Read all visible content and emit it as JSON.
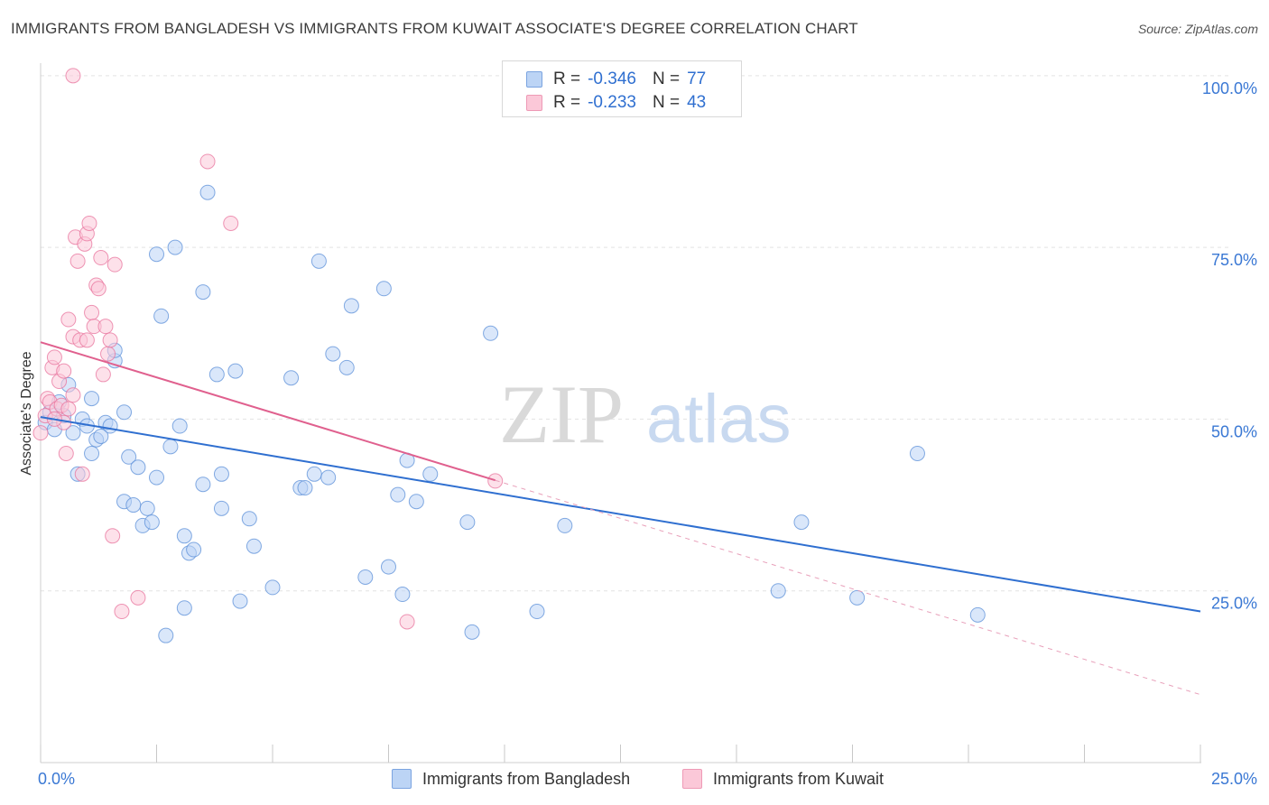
{
  "title": "IMMIGRANTS FROM BANGLADESH VS IMMIGRANTS FROM KUWAIT ASSOCIATE'S DEGREE CORRELATION CHART",
  "source": "Source: ZipAtlas.com",
  "watermark": {
    "part1": "ZIP",
    "part2": "atlas"
  },
  "legend": {
    "rows": [
      {
        "r_label": "R =",
        "r_value": "-0.346",
        "n_label": "N =",
        "n_value": "77"
      },
      {
        "r_label": "R =",
        "r_value": "-0.233",
        "n_label": "N =",
        "n_value": "43"
      }
    ]
  },
  "chart_data": {
    "type": "scatter",
    "xlabel": "",
    "ylabel": "Associate's Degree",
    "xlim": [
      0,
      25
    ],
    "ylim": [
      0,
      100
    ],
    "x_tick_labels": [
      {
        "value": 0,
        "label": "0.0%"
      },
      {
        "value": 25,
        "label": "25.0%"
      }
    ],
    "y_tick_labels": [
      {
        "value": 25,
        "label": "25.0%"
      },
      {
        "value": 50,
        "label": "50.0%"
      },
      {
        "value": 75,
        "label": "75.0%"
      },
      {
        "value": 100,
        "label": "100.0%"
      }
    ],
    "grid": true,
    "legend_position": "top-center",
    "series": [
      {
        "name": "Immigrants from Bangladesh",
        "color": "#5b8fd8",
        "fill": "#bcd4f5",
        "r": -0.346,
        "n": 77,
        "trend": {
          "x": [
            0,
            25
          ],
          "y": [
            50.3,
            22.0
          ],
          "dashed_until": null
        },
        "points": [
          [
            0.1,
            49.5
          ],
          [
            0.2,
            51.0
          ],
          [
            0.3,
            48.5
          ],
          [
            0.4,
            52.5
          ],
          [
            0.5,
            50.5
          ],
          [
            0.6,
            55.0
          ],
          [
            0.7,
            48.0
          ],
          [
            0.8,
            42.0
          ],
          [
            0.9,
            50.0
          ],
          [
            1.0,
            49.0
          ],
          [
            1.1,
            45.0
          ],
          [
            1.1,
            53.0
          ],
          [
            1.2,
            47.0
          ],
          [
            1.3,
            47.5
          ],
          [
            1.4,
            49.5
          ],
          [
            1.5,
            49.0
          ],
          [
            1.6,
            58.5
          ],
          [
            1.6,
            60.0
          ],
          [
            1.8,
            51.0
          ],
          [
            1.8,
            38.0
          ],
          [
            1.9,
            44.5
          ],
          [
            2.0,
            37.5
          ],
          [
            2.1,
            43.0
          ],
          [
            2.2,
            34.5
          ],
          [
            2.3,
            37.0
          ],
          [
            2.4,
            35.0
          ],
          [
            2.5,
            74.0
          ],
          [
            2.5,
            41.5
          ],
          [
            2.6,
            65.0
          ],
          [
            2.7,
            18.5
          ],
          [
            2.8,
            46.0
          ],
          [
            2.9,
            75.0
          ],
          [
            3.0,
            49.0
          ],
          [
            3.1,
            22.5
          ],
          [
            3.1,
            33.0
          ],
          [
            3.2,
            30.5
          ],
          [
            3.3,
            31.0
          ],
          [
            3.5,
            68.5
          ],
          [
            3.5,
            40.5
          ],
          [
            3.6,
            83.0
          ],
          [
            3.8,
            56.5
          ],
          [
            3.9,
            37.0
          ],
          [
            3.9,
            42.0
          ],
          [
            4.2,
            57.0
          ],
          [
            4.3,
            23.5
          ],
          [
            4.5,
            35.5
          ],
          [
            4.6,
            31.5
          ],
          [
            5.0,
            25.5
          ],
          [
            5.4,
            56.0
          ],
          [
            5.6,
            40.0
          ],
          [
            5.7,
            40.0
          ],
          [
            5.9,
            42.0
          ],
          [
            6.0,
            73.0
          ],
          [
            6.2,
            41.5
          ],
          [
            6.3,
            59.5
          ],
          [
            6.6,
            57.5
          ],
          [
            6.7,
            66.5
          ],
          [
            7.0,
            27.0
          ],
          [
            7.4,
            69.0
          ],
          [
            7.5,
            28.5
          ],
          [
            7.7,
            39.0
          ],
          [
            7.8,
            24.5
          ],
          [
            7.9,
            44.0
          ],
          [
            8.1,
            38.0
          ],
          [
            8.4,
            42.0
          ],
          [
            9.2,
            35.0
          ],
          [
            9.3,
            19.0
          ],
          [
            9.7,
            62.5
          ],
          [
            10.7,
            22.0
          ],
          [
            11.3,
            34.5
          ],
          [
            15.9,
            25.0
          ],
          [
            16.4,
            35.0
          ],
          [
            17.6,
            24.0
          ],
          [
            18.9,
            45.0
          ],
          [
            20.2,
            21.5
          ]
        ]
      },
      {
        "name": "Immigrants from Kuwait",
        "color": "#e8739c",
        "fill": "#fbc8d8",
        "r": -0.233,
        "n": 43,
        "trend": {
          "x": [
            0,
            25
          ],
          "y": [
            61.2,
            9.9
          ],
          "solid_until": 9.8
        },
        "points": [
          [
            0.0,
            48.0
          ],
          [
            0.1,
            50.5
          ],
          [
            0.15,
            53.0
          ],
          [
            0.2,
            52.5
          ],
          [
            0.25,
            57.5
          ],
          [
            0.3,
            59.0
          ],
          [
            0.35,
            51.5
          ],
          [
            0.4,
            55.5
          ],
          [
            0.45,
            52.0
          ],
          [
            0.5,
            49.5
          ],
          [
            0.5,
            57.0
          ],
          [
            0.55,
            45.0
          ],
          [
            0.6,
            51.5
          ],
          [
            0.6,
            64.5
          ],
          [
            0.7,
            53.5
          ],
          [
            0.7,
            62.0
          ],
          [
            0.75,
            76.5
          ],
          [
            0.8,
            73.0
          ],
          [
            0.85,
            61.5
          ],
          [
            0.9,
            42.0
          ],
          [
            0.95,
            75.5
          ],
          [
            1.0,
            77.0
          ],
          [
            1.0,
            61.5
          ],
          [
            1.05,
            78.5
          ],
          [
            1.1,
            65.5
          ],
          [
            1.15,
            63.5
          ],
          [
            1.2,
            69.5
          ],
          [
            1.25,
            69.0
          ],
          [
            1.3,
            73.5
          ],
          [
            1.35,
            56.5
          ],
          [
            1.4,
            63.5
          ],
          [
            1.45,
            59.5
          ],
          [
            1.5,
            61.5
          ],
          [
            1.55,
            33.0
          ],
          [
            1.6,
            72.5
          ],
          [
            1.75,
            22.0
          ],
          [
            2.1,
            24.0
          ],
          [
            0.7,
            100.0
          ],
          [
            3.6,
            87.5
          ],
          [
            4.1,
            78.5
          ],
          [
            7.9,
            20.5
          ],
          [
            9.8,
            41.0
          ],
          [
            0.3,
            50.0
          ]
        ]
      }
    ]
  }
}
